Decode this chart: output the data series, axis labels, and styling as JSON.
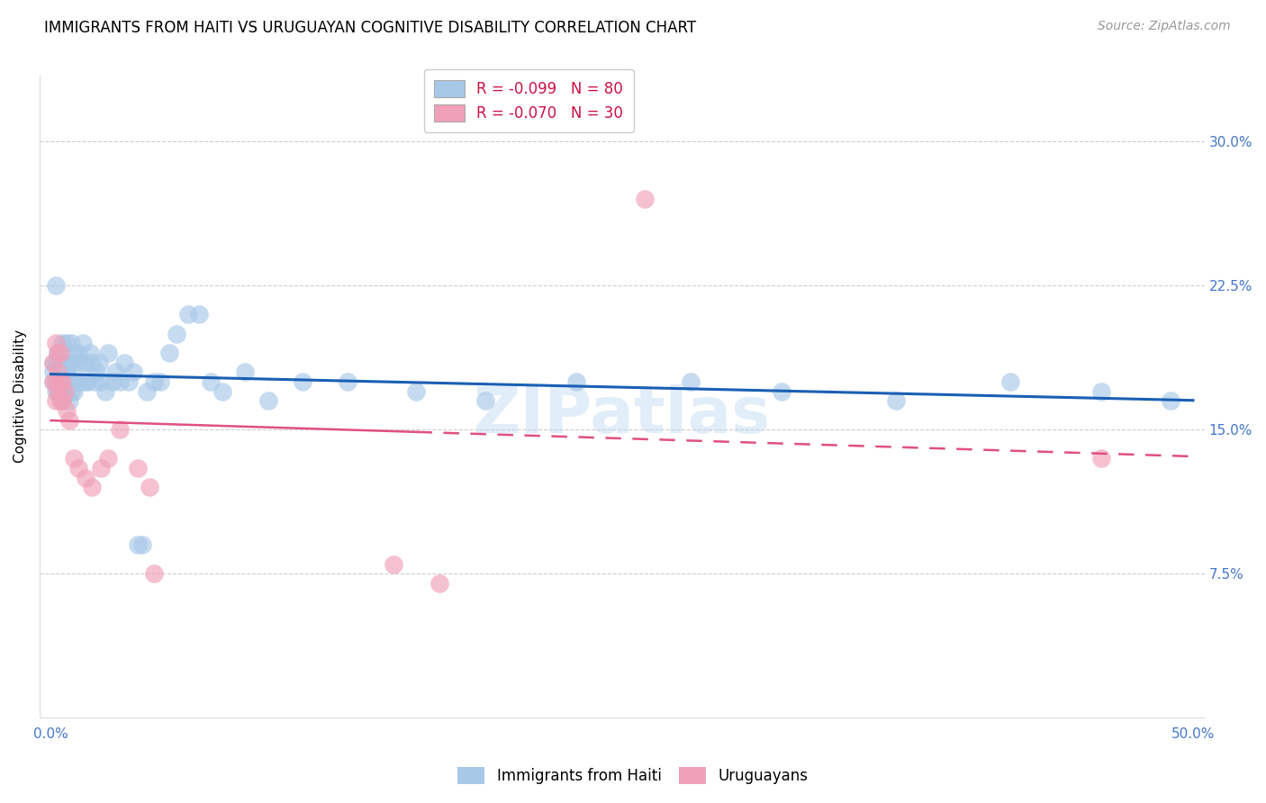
{
  "title": "IMMIGRANTS FROM HAITI VS URUGUAYAN COGNITIVE DISABILITY CORRELATION CHART",
  "source": "Source: ZipAtlas.com",
  "ylabel": "Cognitive Disability",
  "watermark": "ZIPatlas",
  "xlim": [
    -0.005,
    0.505
  ],
  "ylim": [
    0.0,
    0.335
  ],
  "xticks": [
    0.0,
    0.5
  ],
  "xtick_labels": [
    "0.0%",
    "50.0%"
  ],
  "yticks": [
    0.075,
    0.15,
    0.225,
    0.3
  ],
  "ytick_labels": [
    "7.5%",
    "15.0%",
    "22.5%",
    "30.0%"
  ],
  "grid_color": "#cccccc",
  "background_color": "#ffffff",
  "series1": {
    "label": "Immigrants from Haiti",
    "R": -0.099,
    "N": 80,
    "color": "#a8c8e8",
    "line_color": "#1a5fb4",
    "x": [
      0.001,
      0.001,
      0.001,
      0.002,
      0.002,
      0.002,
      0.002,
      0.003,
      0.003,
      0.003,
      0.003,
      0.004,
      0.004,
      0.004,
      0.005,
      0.005,
      0.005,
      0.005,
      0.006,
      0.006,
      0.006,
      0.007,
      0.007,
      0.007,
      0.008,
      0.008,
      0.008,
      0.009,
      0.009,
      0.01,
      0.01,
      0.01,
      0.011,
      0.011,
      0.012,
      0.012,
      0.013,
      0.013,
      0.014,
      0.015,
      0.015,
      0.016,
      0.017,
      0.018,
      0.019,
      0.02,
      0.021,
      0.022,
      0.024,
      0.025,
      0.027,
      0.028,
      0.03,
      0.032,
      0.034,
      0.036,
      0.038,
      0.04,
      0.042,
      0.045,
      0.048,
      0.052,
      0.055,
      0.06,
      0.065,
      0.07,
      0.075,
      0.085,
      0.095,
      0.11,
      0.13,
      0.16,
      0.19,
      0.23,
      0.28,
      0.32,
      0.37,
      0.42,
      0.46,
      0.49
    ],
    "y": [
      0.175,
      0.18,
      0.185,
      0.17,
      0.175,
      0.185,
      0.225,
      0.17,
      0.175,
      0.18,
      0.19,
      0.175,
      0.18,
      0.185,
      0.165,
      0.175,
      0.185,
      0.195,
      0.17,
      0.18,
      0.185,
      0.175,
      0.18,
      0.195,
      0.165,
      0.175,
      0.185,
      0.17,
      0.195,
      0.17,
      0.175,
      0.19,
      0.175,
      0.185,
      0.175,
      0.19,
      0.175,
      0.185,
      0.195,
      0.175,
      0.185,
      0.175,
      0.19,
      0.185,
      0.175,
      0.18,
      0.185,
      0.175,
      0.17,
      0.19,
      0.175,
      0.18,
      0.175,
      0.185,
      0.175,
      0.18,
      0.09,
      0.09,
      0.17,
      0.175,
      0.175,
      0.19,
      0.2,
      0.21,
      0.21,
      0.175,
      0.17,
      0.18,
      0.165,
      0.175,
      0.175,
      0.17,
      0.165,
      0.175,
      0.175,
      0.17,
      0.165,
      0.175,
      0.17,
      0.165
    ]
  },
  "series2": {
    "label": "Uruguayans",
    "R": -0.07,
    "N": 30,
    "color": "#f0a0b8",
    "line_color": "#e05080",
    "x": [
      0.001,
      0.001,
      0.002,
      0.002,
      0.002,
      0.003,
      0.003,
      0.003,
      0.004,
      0.004,
      0.004,
      0.005,
      0.005,
      0.006,
      0.007,
      0.008,
      0.01,
      0.012,
      0.015,
      0.018,
      0.022,
      0.025,
      0.03,
      0.038,
      0.043,
      0.045,
      0.15,
      0.17,
      0.26,
      0.46
    ],
    "y": [
      0.175,
      0.185,
      0.165,
      0.175,
      0.195,
      0.17,
      0.18,
      0.19,
      0.165,
      0.175,
      0.19,
      0.165,
      0.175,
      0.17,
      0.16,
      0.155,
      0.135,
      0.13,
      0.125,
      0.12,
      0.13,
      0.135,
      0.15,
      0.13,
      0.12,
      0.075,
      0.08,
      0.07,
      0.27,
      0.135
    ]
  },
  "title_fontsize": 12,
  "axis_label_fontsize": 11,
  "tick_fontsize": 11,
  "legend_fontsize": 12,
  "source_fontsize": 10,
  "ytick_color": "#4477cc",
  "xtick_color": "#4477cc",
  "legend_R_color": "#cc2244",
  "legend_N_color": "#1144cc"
}
